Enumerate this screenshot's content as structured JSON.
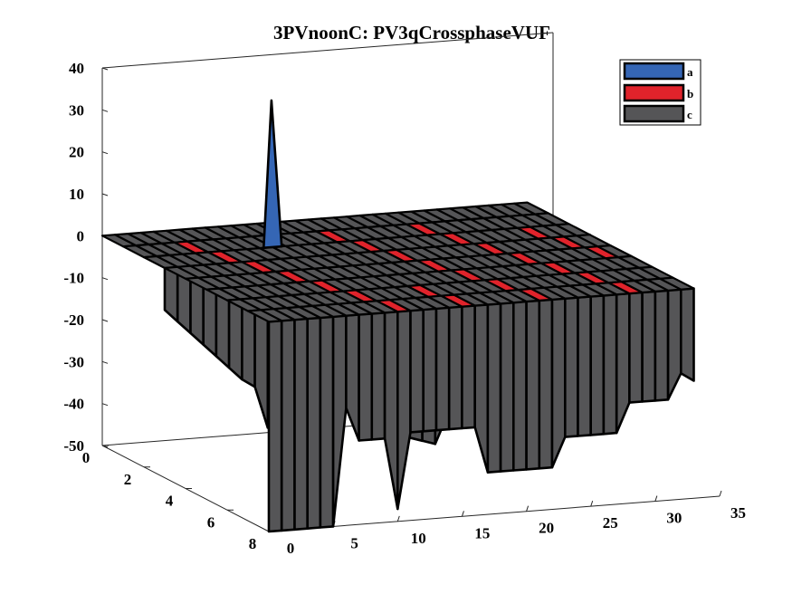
{
  "chart_data": {
    "type": "3d-bar",
    "title": "3PVnoonC: PV3qCrossphaseVUF",
    "xlabel": "",
    "ylabel": "",
    "zlabel": "",
    "xlim": [
      0,
      35
    ],
    "ylim": [
      0,
      8
    ],
    "zlim": [
      -50,
      40
    ],
    "x_ticks": [
      "0",
      "5",
      "10",
      "15",
      "20",
      "25",
      "30",
      "35"
    ],
    "y_ticks": [
      "0",
      "2",
      "4",
      "6",
      "8"
    ],
    "z_ticks": [
      "40",
      "30",
      "20",
      "10",
      "0",
      "-10",
      "-20",
      "-30",
      "-40",
      "-50"
    ],
    "legend_position": "top-right",
    "series": [
      {
        "name": "a",
        "color": "#3566b5",
        "spike": {
          "x": 10,
          "y": 2,
          "value": 35
        }
      },
      {
        "name": "b",
        "color": "#e0232b"
      },
      {
        "name": "c",
        "color": "#555557",
        "front_depth": [
          -50,
          -50,
          -50,
          -50,
          -50,
          -50,
          -22,
          -30,
          -30,
          -30,
          -47,
          -29,
          -29,
          -29,
          -29,
          -29,
          -29,
          -40,
          -40,
          -40,
          -40,
          -40,
          -40,
          -33,
          -33,
          -33,
          -33,
          -33,
          -26,
          -26,
          -26,
          -26,
          -20,
          -22
        ],
        "back_depth": [
          -10,
          -13,
          -16,
          -19,
          -22,
          -25,
          -28,
          -30,
          -40,
          -40,
          -35,
          -30,
          -25,
          -20,
          -22,
          -25,
          -33,
          -40,
          -43,
          -45,
          -46,
          -47,
          -40,
          -35,
          -30,
          -25,
          -22,
          -20,
          -33,
          -28,
          -22,
          -18,
          -14,
          -10
        ]
      }
    ]
  }
}
